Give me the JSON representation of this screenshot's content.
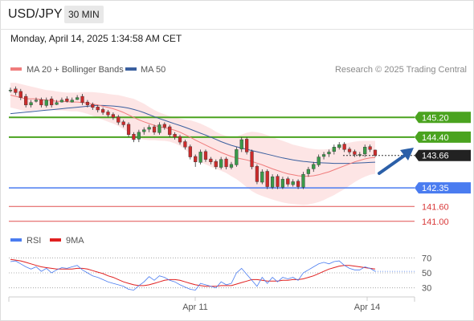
{
  "header": {
    "symbol": "USD/JPY",
    "interval": "30 MIN",
    "timestamp": "Monday, April 14, 2025 1:34:58 AM CET"
  },
  "legend": {
    "ma20_label": "MA 20 + Bollinger Bands",
    "ma50_label": "MA 50",
    "copyright": "Research © 2025 Trading Central",
    "rsi_label": "RSI",
    "rsi_ma_label": "9MA"
  },
  "colors": {
    "ma20": "#f07c7c",
    "ma50": "#3a5f9f",
    "band": "#fde0e0",
    "candle_up": "#3a9a4a",
    "candle_down": "#cc2b2b",
    "resistance": "#4aa31f",
    "support": "#4a7cf0",
    "level_red": "#e05050",
    "arrow": "#2b5fa8",
    "current": "#222222",
    "rsi": "#4a7cf0",
    "rsi_ma": "#e02020"
  },
  "chart_data": [
    {
      "type": "candlestick",
      "panel": "price",
      "x_labels": [
        "Apr 11",
        "Apr 14"
      ],
      "ylim": [
        140.7,
        146.7
      ],
      "levels": [
        {
          "value": 145.2,
          "label": "145.20",
          "kind": "resistance"
        },
        {
          "value": 144.4,
          "label": "144.40",
          "kind": "resistance"
        },
        {
          "value": 143.66,
          "label": "143.66",
          "kind": "current"
        },
        {
          "value": 142.35,
          "label": "142.35",
          "kind": "support"
        },
        {
          "value": 141.6,
          "label": "141.60",
          "kind": "support-red"
        },
        {
          "value": 141.0,
          "label": "141.00",
          "kind": "support-red"
        }
      ],
      "close": [
        146.3,
        146.2,
        146.0,
        145.7,
        145.8,
        145.9,
        145.7,
        145.9,
        145.7,
        145.8,
        145.9,
        145.85,
        145.9,
        146.0,
        145.8,
        145.7,
        145.6,
        145.5,
        145.4,
        145.3,
        145.2,
        145.0,
        144.9,
        144.5,
        144.3,
        144.6,
        144.7,
        144.8,
        144.6,
        144.9,
        144.8,
        144.5,
        144.4,
        144.2,
        144.0,
        143.6,
        143.4,
        143.8,
        143.5,
        143.4,
        143.2,
        143.5,
        143.2,
        143.3,
        143.9,
        144.3,
        143.8,
        143.2,
        142.6,
        143.0,
        142.4,
        142.8,
        142.4,
        142.7,
        142.5,
        142.6,
        142.4,
        142.9,
        143.1,
        143.3,
        143.6,
        143.7,
        143.8,
        144.0,
        144.1,
        143.9,
        143.8,
        143.7,
        143.7,
        144.0,
        143.9,
        143.66
      ],
      "open": [
        146.28,
        146.35,
        146.25,
        146.05,
        145.7,
        145.85,
        145.92,
        145.68,
        145.95,
        145.72,
        145.82,
        145.95,
        145.82,
        145.92,
        146.05,
        145.82,
        145.72,
        145.62,
        145.52,
        145.42,
        145.32,
        145.22,
        145.02,
        144.92,
        144.52,
        144.32,
        144.62,
        144.72,
        144.82,
        144.58,
        144.92,
        144.82,
        144.52,
        144.42,
        144.22,
        144.02,
        143.62,
        143.38,
        143.82,
        143.52,
        143.42,
        143.18,
        143.52,
        143.18,
        143.28,
        143.92,
        144.32,
        143.82,
        143.22,
        142.58,
        143.02,
        142.38,
        142.82,
        142.38,
        142.72,
        142.48,
        142.62,
        142.38,
        142.92,
        143.12,
        143.28,
        143.62,
        143.72,
        143.82,
        143.98,
        144.12,
        143.92,
        143.82,
        143.68,
        143.72,
        144.02,
        143.88
      ],
      "high": [
        146.4,
        146.45,
        146.35,
        146.15,
        145.9,
        146.0,
        146.0,
        146.0,
        146.05,
        145.9,
        146.0,
        146.05,
        146.0,
        146.1,
        146.15,
        145.9,
        145.8,
        145.7,
        145.6,
        145.5,
        145.4,
        145.3,
        145.1,
        145.0,
        144.6,
        144.7,
        144.8,
        144.9,
        144.9,
        145.0,
        145.0,
        144.9,
        144.6,
        144.5,
        144.3,
        144.1,
        143.7,
        143.9,
        143.9,
        143.6,
        143.5,
        143.6,
        143.6,
        143.4,
        144.0,
        144.4,
        144.4,
        143.9,
        143.3,
        143.1,
        143.1,
        142.9,
        142.9,
        142.8,
        142.8,
        142.7,
        142.7,
        143.0,
        143.2,
        143.4,
        143.7,
        143.8,
        143.9,
        144.1,
        144.2,
        144.2,
        144.0,
        143.9,
        143.8,
        144.1,
        144.1,
        143.9
      ],
      "low": [
        146.2,
        146.1,
        145.9,
        145.6,
        145.6,
        145.8,
        145.6,
        145.6,
        145.6,
        145.7,
        145.8,
        145.8,
        145.8,
        145.9,
        145.7,
        145.6,
        145.5,
        145.4,
        145.3,
        145.2,
        145.1,
        144.9,
        144.8,
        144.4,
        144.2,
        144.2,
        144.5,
        144.6,
        144.5,
        144.5,
        144.7,
        144.4,
        144.3,
        144.1,
        143.9,
        143.5,
        143.2,
        143.3,
        143.4,
        143.3,
        143.1,
        143.1,
        143.1,
        143.1,
        143.2,
        143.8,
        143.7,
        143.1,
        142.5,
        142.5,
        142.3,
        142.3,
        142.3,
        142.3,
        142.4,
        142.4,
        142.3,
        142.3,
        142.8,
        143.0,
        143.2,
        143.5,
        143.6,
        143.7,
        143.9,
        143.8,
        143.7,
        143.6,
        143.6,
        143.6,
        143.8,
        143.6
      ],
      "ma20": [
        146.1,
        146.05,
        146.0,
        145.95,
        145.95,
        145.95,
        145.92,
        145.9,
        145.88,
        145.85,
        145.85,
        145.83,
        145.82,
        145.82,
        145.8,
        145.78,
        145.74,
        145.7,
        145.65,
        145.6,
        145.55,
        145.48,
        145.4,
        145.3,
        145.2,
        145.1,
        145.02,
        144.95,
        144.88,
        144.82,
        144.78,
        144.74,
        144.68,
        144.6,
        144.5,
        144.4,
        144.28,
        144.18,
        144.08,
        143.98,
        143.88,
        143.78,
        143.7,
        143.62,
        143.56,
        143.52,
        143.48,
        143.42,
        143.35,
        143.28,
        143.2,
        143.12,
        143.05,
        142.98,
        142.92,
        142.88,
        142.84,
        142.82,
        142.82,
        142.84,
        142.88,
        142.94,
        143.0,
        143.08,
        143.16,
        143.24,
        143.32,
        143.4,
        143.46,
        143.52,
        143.56,
        143.58
      ],
      "bb_upper": [
        146.6,
        146.6,
        146.55,
        146.5,
        146.45,
        146.4,
        146.35,
        146.3,
        146.28,
        146.25,
        146.22,
        146.2,
        146.2,
        146.2,
        146.22,
        146.22,
        146.22,
        146.2,
        146.18,
        146.15,
        146.12,
        146.1,
        146.05,
        146.0,
        145.95,
        145.85,
        145.75,
        145.62,
        145.5,
        145.4,
        145.32,
        145.25,
        145.2,
        145.15,
        145.1,
        145.08,
        145.02,
        144.95,
        144.85,
        144.75,
        144.62,
        144.52,
        144.45,
        144.42,
        144.42,
        144.5,
        144.58,
        144.62,
        144.6,
        144.55,
        144.48,
        144.4,
        144.32,
        144.25,
        144.18,
        144.1,
        144.05,
        144.0,
        143.95,
        143.92,
        143.9,
        143.9,
        143.92,
        143.98,
        144.05,
        144.12,
        144.18,
        144.22,
        144.24,
        144.25,
        144.25,
        144.25
      ],
      "bb_lower": [
        145.6,
        145.55,
        145.5,
        145.45,
        145.45,
        145.5,
        145.5,
        145.5,
        145.5,
        145.48,
        145.48,
        145.46,
        145.44,
        145.44,
        145.4,
        145.34,
        145.26,
        145.18,
        145.1,
        145.02,
        144.95,
        144.85,
        144.72,
        144.6,
        144.45,
        144.35,
        144.3,
        144.28,
        144.28,
        144.26,
        144.25,
        144.22,
        144.15,
        144.05,
        143.9,
        143.72,
        143.55,
        143.4,
        143.3,
        143.2,
        143.12,
        143.04,
        142.95,
        142.82,
        142.7,
        142.55,
        142.38,
        142.22,
        142.1,
        142.02,
        141.95,
        141.88,
        141.82,
        141.76,
        141.72,
        141.7,
        141.68,
        141.66,
        141.68,
        141.72,
        141.78,
        141.86,
        141.96,
        142.06,
        142.18,
        142.3,
        142.44,
        142.58,
        142.7,
        142.8,
        142.88,
        142.92
      ],
      "ma50": [
        145.35,
        145.37,
        145.39,
        145.41,
        145.43,
        145.45,
        145.47,
        145.49,
        145.51,
        145.53,
        145.55,
        145.57,
        145.59,
        145.61,
        145.63,
        145.65,
        145.67,
        145.68,
        145.68,
        145.67,
        145.66,
        145.64,
        145.61,
        145.57,
        145.52,
        145.46,
        145.39,
        145.31,
        145.23,
        145.15,
        145.08,
        145.01,
        144.94,
        144.87,
        144.8,
        144.72,
        144.64,
        144.56,
        144.48,
        144.4,
        144.31,
        144.22,
        144.14,
        144.07,
        144.01,
        143.96,
        143.91,
        143.86,
        143.81,
        143.76,
        143.71,
        143.66,
        143.61,
        143.56,
        143.52,
        143.48,
        143.45,
        143.42,
        143.4,
        143.38,
        143.37,
        143.36,
        143.35,
        143.34,
        143.34,
        143.34,
        143.34,
        143.35,
        143.36,
        143.37,
        143.38,
        143.39
      ]
    },
    {
      "type": "line",
      "panel": "rsi",
      "ylim": [
        20,
        80
      ],
      "y_ticks": [
        70,
        50,
        30
      ],
      "series": [
        {
          "name": "RSI",
          "values": [
            65,
            66,
            62,
            58,
            55,
            58,
            52,
            56,
            50,
            54,
            57,
            56,
            58,
            60,
            54,
            50,
            46,
            44,
            41,
            38,
            36,
            34,
            32,
            28,
            27,
            33,
            38,
            45,
            40,
            46,
            44,
            40,
            38,
            34,
            31,
            28,
            27,
            36,
            34,
            32,
            30,
            38,
            34,
            36,
            50,
            56,
            48,
            40,
            32,
            44,
            36,
            44,
            38,
            44,
            42,
            44,
            40,
            50,
            54,
            58,
            62,
            64,
            62,
            65,
            66,
            60,
            56,
            54,
            54,
            58,
            56,
            52
          ]
        },
        {
          "name": "9MA",
          "values": [
            68,
            67,
            66,
            64,
            62,
            60,
            58,
            57,
            56,
            55,
            55,
            55,
            55,
            56,
            56,
            55,
            53,
            51,
            49,
            46,
            44,
            41,
            38,
            36,
            34,
            33,
            33,
            34,
            36,
            38,
            40,
            41,
            41,
            40,
            38,
            36,
            34,
            33,
            32,
            32,
            32,
            33,
            33,
            33,
            35,
            37,
            39,
            41,
            41,
            40,
            39,
            39,
            39,
            40,
            40,
            41,
            41,
            42,
            44,
            46,
            49,
            52,
            55,
            57,
            59,
            60,
            60,
            59,
            58,
            57,
            56,
            55
          ]
        }
      ]
    }
  ]
}
